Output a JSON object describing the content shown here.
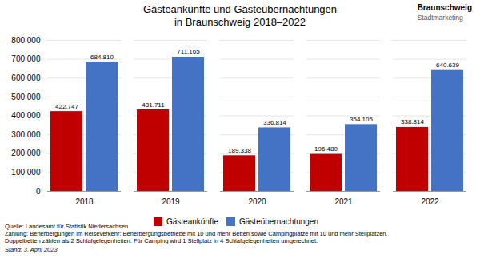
{
  "chart_data": {
    "type": "bar",
    "title": "Gästeankünfte und Gästeübernachtungen\nin Braunschweig 2018–2022",
    "categories": [
      "2018",
      "2019",
      "2020",
      "2021",
      "2022"
    ],
    "series": [
      {
        "name": "Gästeankünfte",
        "color": "#c00000",
        "values": [
          422747,
          431711,
          189338,
          196480,
          338814
        ],
        "value_labels": [
          "422.747",
          "431.711",
          "189.338",
          "196.480",
          "338.814"
        ]
      },
      {
        "name": "Gästeübernachtungen",
        "color": "#4472c4",
        "values": [
          684810,
          711165,
          336814,
          354105,
          640639
        ],
        "value_labels": [
          "684.810",
          "711.165",
          "336.814",
          "354.105",
          "640.639"
        ]
      }
    ],
    "ylim": [
      0,
      800000
    ],
    "yticks": [
      0,
      {
        "value": 100000,
        "label": "100 000"
      },
      {
        "value": 200000,
        "label": "200 000"
      },
      {
        "value": 300000,
        "label": "300 000"
      },
      {
        "value": 400000,
        "label": "400 000"
      },
      {
        "value": 500000,
        "label": "500 000"
      },
      {
        "value": 600000,
        "label": "600 000"
      },
      {
        "value": 700000,
        "label": "700 000"
      },
      {
        "value": 800000,
        "label": "800 000"
      }
    ],
    "grid": true,
    "data_labels": true,
    "legend": "bottom",
    "annotations": [
      "Braunschweig",
      "Stadtmarketing",
      "Quelle: Landesamt für Statistik Niedersachsen",
      "Zählung: Beherbergungen im Reiseverkehr: Beherbergungsbetriebe mit 10 und mehr Betten sowie Campingplätze mit 10 und mehr Stellplätzen.",
      "Doppelbetten zählen als 2 Schlafgelegenheiten. Für Camping wird 1 Stellplatz in 4 Schlafgelegenheiten umgerechnet.",
      "Stand: 3. April 2023"
    ]
  }
}
